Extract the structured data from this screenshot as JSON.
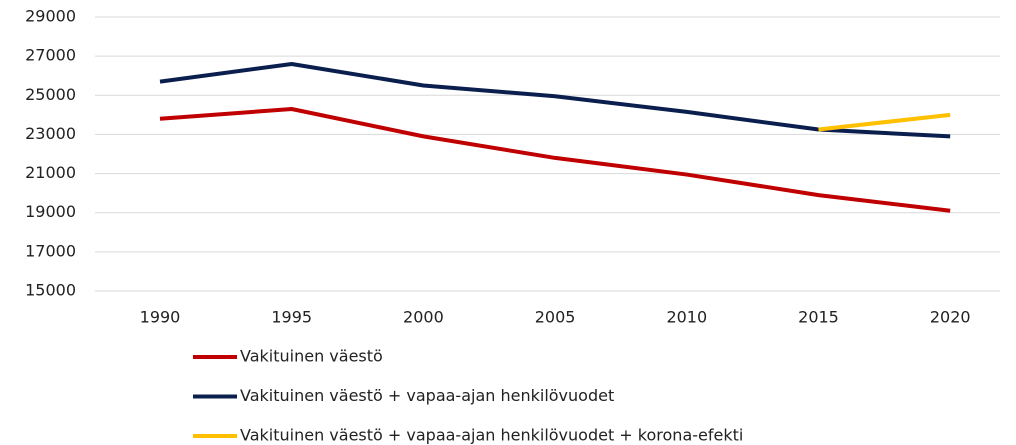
{
  "chart_data": {
    "type": "line",
    "categories": [
      "1990",
      "1995",
      "2000",
      "2005",
      "2010",
      "2015",
      "2020"
    ],
    "series": [
      {
        "name": "Vakituinen väestö",
        "color": "#c00000",
        "values": [
          23800,
          24300,
          22900,
          21800,
          20950,
          19900,
          19100
        ]
      },
      {
        "name": "Vakituinen väestö + vapaa-ajan henkilövuodet",
        "color": "#0b1f4e",
        "values": [
          25700,
          26600,
          25500,
          24950,
          24150,
          23250,
          22900
        ]
      },
      {
        "name": "Vakituinen väestö + vapaa-ajan henkilövuodet + korona-efekti",
        "color": "#ffc000",
        "values": [
          null,
          null,
          null,
          null,
          null,
          23250,
          24000
        ]
      }
    ],
    "ylim": [
      15000,
      29000
    ],
    "yticks": [
      15000,
      17000,
      19000,
      21000,
      23000,
      25000,
      27000,
      29000
    ],
    "grid": true,
    "legend": "bottom"
  }
}
